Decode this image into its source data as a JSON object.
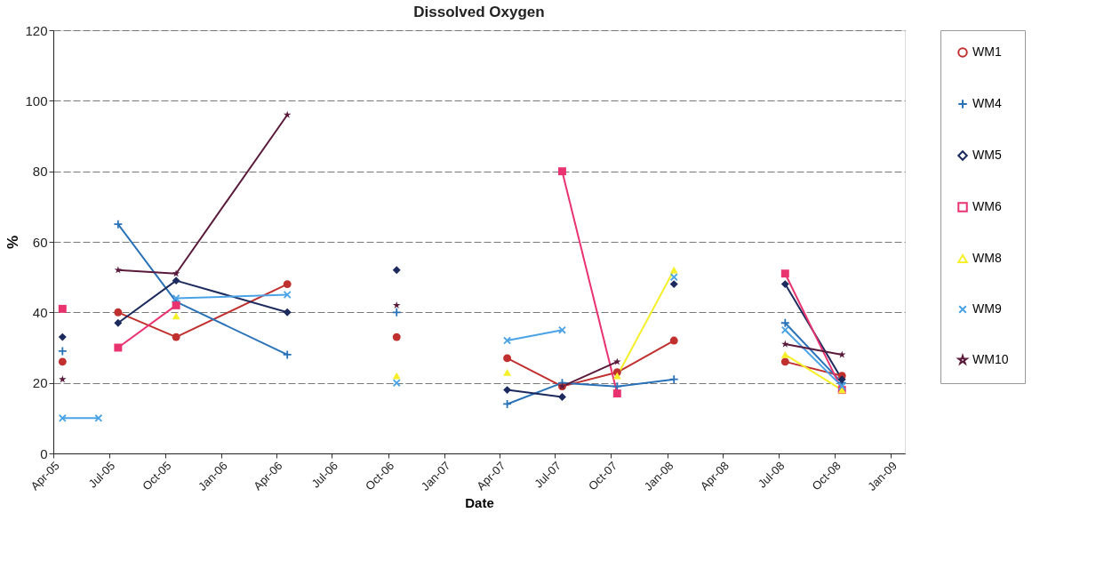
{
  "chart_data": {
    "type": "line",
    "title": "Dissolved Oxygen",
    "xlabel": "Date",
    "ylabel": "%",
    "x": [
      "2005-04-16",
      "2005-06-14",
      "2005-07-16",
      "2005-10-19",
      "2006-04-19",
      "2006-07-15",
      "2006-10-15",
      "2007-01-15",
      "2007-04-14",
      "2007-07-13",
      "2007-10-11",
      "2008-01-12",
      "2008-04-15",
      "2008-07-12",
      "2008-10-13"
    ],
    "series": [
      {
        "name": "WM1",
        "color": "#c0302e",
        "marker": "circle",
        "values": [
          26,
          null,
          40,
          33,
          48,
          null,
          33,
          null,
          27,
          19,
          23,
          32,
          null,
          26,
          22
        ]
      },
      {
        "name": "WM4",
        "color": "#2a72b8",
        "marker": "cross",
        "values": [
          29,
          null,
          65,
          43,
          28,
          null,
          40,
          null,
          14,
          20,
          19,
          21,
          null,
          37,
          20
        ]
      },
      {
        "name": "WM5",
        "color": "#1c2a5e",
        "marker": "diamond",
        "values": [
          33,
          null,
          37,
          49,
          40,
          null,
          52,
          null,
          18,
          16,
          null,
          48,
          null,
          48,
          21
        ]
      },
      {
        "name": "WM6",
        "color": "#e8336f",
        "marker": "square",
        "values": [
          41,
          null,
          30,
          42,
          null,
          null,
          null,
          null,
          null,
          80,
          17,
          null,
          null,
          51,
          18
        ]
      },
      {
        "name": "WM8",
        "color": "#f5f02a",
        "marker": "triangle",
        "values": [
          null,
          null,
          null,
          39,
          null,
          null,
          22,
          null,
          23,
          null,
          22,
          52,
          null,
          28,
          18
        ]
      },
      {
        "name": "WM9",
        "color": "#4aa3e6",
        "marker": "x",
        "values": [
          10,
          10,
          null,
          44,
          45,
          null,
          20,
          null,
          32,
          35,
          null,
          50,
          null,
          35,
          19
        ]
      },
      {
        "name": "WM10",
        "color": "#5a1a3c",
        "marker": "star",
        "values": [
          21,
          null,
          52,
          51,
          96,
          null,
          42,
          null,
          null,
          19,
          26,
          null,
          null,
          31,
          28
        ]
      }
    ],
    "xlim": [
      "2005-04-01",
      "2009-01-24"
    ],
    "xticks": [
      {
        "value": "2005-04-01",
        "label": "Apr-05"
      },
      {
        "value": "2005-07-01",
        "label": "Jul-05"
      },
      {
        "value": "2005-10-01",
        "label": "Oct-05"
      },
      {
        "value": "2006-01-01",
        "label": "Jan-06"
      },
      {
        "value": "2006-04-01",
        "label": "Apr-06"
      },
      {
        "value": "2006-07-01",
        "label": "Jul-06"
      },
      {
        "value": "2006-10-01",
        "label": "Oct-06"
      },
      {
        "value": "2007-01-01",
        "label": "Jan-07"
      },
      {
        "value": "2007-04-01",
        "label": "Apr-07"
      },
      {
        "value": "2007-07-01",
        "label": "Jul-07"
      },
      {
        "value": "2007-10-01",
        "label": "Oct-07"
      },
      {
        "value": "2008-01-01",
        "label": "Jan-08"
      },
      {
        "value": "2008-04-01",
        "label": "Apr-08"
      },
      {
        "value": "2008-07-01",
        "label": "Jul-08"
      },
      {
        "value": "2008-10-01",
        "label": "Oct-08"
      },
      {
        "value": "2009-01-01",
        "label": "Jan-09"
      }
    ],
    "ylim": [
      0,
      120
    ],
    "yticks": [
      0,
      20,
      40,
      60,
      80,
      100,
      120
    ],
    "grid": "y",
    "legend": "right",
    "line_style": "solid"
  }
}
